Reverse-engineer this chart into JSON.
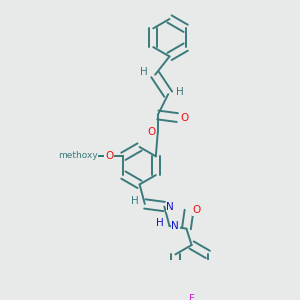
{
  "bg_color": "#e8eaea",
  "bond_color": "#3a7a7a",
  "bond_width": 1.4,
  "atom_colors": {
    "O": "#ee1111",
    "N": "#1111cc",
    "F": "#cc22cc",
    "H": "#3a7a7a",
    "C": "#3a7a7a"
  },
  "font_size": 7.5,
  "fig_width": 3.0,
  "fig_height": 3.0,
  "xlim": [
    0.0,
    1.0
  ],
  "ylim": [
    0.0,
    1.0
  ]
}
